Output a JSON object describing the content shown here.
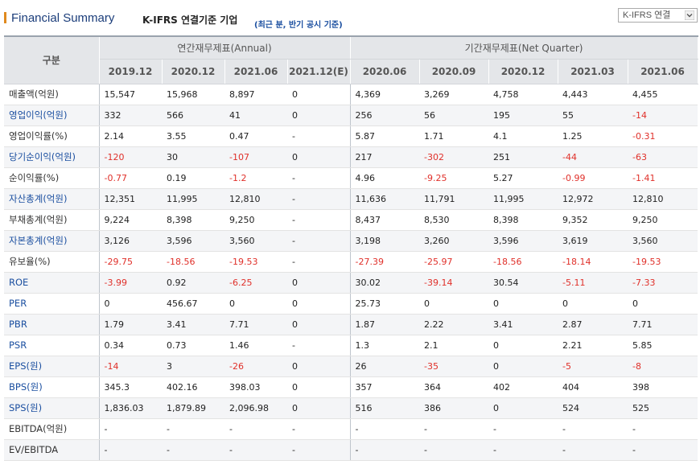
{
  "header": {
    "title_en": "Financial Summary",
    "title_kr": "K-IFRS 연결기준 기업",
    "subtitle": "(최근 분, 반기 공시 기준)",
    "select_value": "K-IFRS 연결"
  },
  "groups": {
    "label": "구분",
    "annual": "연간재무제표(Annual)",
    "quarter": "기간재무제표(Net Quarter)"
  },
  "columns": [
    "2019.12",
    "2020.12",
    "2021.06",
    "2021.12(E)",
    "2020.06",
    "2020.09",
    "2020.12",
    "2021.03",
    "2021.06"
  ],
  "rows": [
    {
      "label": "매출액(억원)",
      "link": false,
      "values": [
        "15,547",
        "15,968",
        "8,897",
        "0",
        "4,369",
        "3,269",
        "4,758",
        "4,443",
        "4,455"
      ]
    },
    {
      "label": "영업이익(억원)",
      "link": true,
      "values": [
        "332",
        "566",
        "41",
        "0",
        "256",
        "56",
        "195",
        "55",
        "-14"
      ]
    },
    {
      "label": "영업이익률(%)",
      "link": false,
      "values": [
        "2.14",
        "3.55",
        "0.47",
        "-",
        "5.87",
        "1.71",
        "4.1",
        "1.25",
        "-0.31"
      ]
    },
    {
      "label": "당기순이익(억원)",
      "link": true,
      "values": [
        "-120",
        "30",
        "-107",
        "0",
        "217",
        "-302",
        "251",
        "-44",
        "-63"
      ]
    },
    {
      "label": "순이익률(%)",
      "link": false,
      "values": [
        "-0.77",
        "0.19",
        "-1.2",
        "-",
        "4.96",
        "-9.25",
        "5.27",
        "-0.99",
        "-1.41"
      ]
    },
    {
      "label": "자산총계(억원)",
      "link": true,
      "values": [
        "12,351",
        "11,995",
        "12,810",
        "-",
        "11,636",
        "11,791",
        "11,995",
        "12,972",
        "12,810"
      ]
    },
    {
      "label": "부채총계(억원)",
      "link": false,
      "values": [
        "9,224",
        "8,398",
        "9,250",
        "-",
        "8,437",
        "8,530",
        "8,398",
        "9,352",
        "9,250"
      ]
    },
    {
      "label": "자본총계(억원)",
      "link": true,
      "values": [
        "3,126",
        "3,596",
        "3,560",
        "-",
        "3,198",
        "3,260",
        "3,596",
        "3,619",
        "3,560"
      ]
    },
    {
      "label": "유보율(%)",
      "link": false,
      "values": [
        "-29.75",
        "-18.56",
        "-19.53",
        "-",
        "-27.39",
        "-25.97",
        "-18.56",
        "-18.14",
        "-19.53"
      ]
    },
    {
      "label": "ROE",
      "link": true,
      "values": [
        "-3.99",
        "0.92",
        "-6.25",
        "0",
        "30.02",
        "-39.14",
        "30.54",
        "-5.11",
        "-7.33"
      ]
    },
    {
      "label": "PER",
      "link": true,
      "values": [
        "0",
        "456.67",
        "0",
        "0",
        "25.73",
        "0",
        "0",
        "0",
        "0"
      ]
    },
    {
      "label": "PBR",
      "link": true,
      "values": [
        "1.79",
        "3.41",
        "7.71",
        "0",
        "1.87",
        "2.22",
        "3.41",
        "2.87",
        "7.71"
      ]
    },
    {
      "label": "PSR",
      "link": true,
      "values": [
        "0.34",
        "0.73",
        "1.46",
        "-",
        "1.3",
        "2.1",
        "0",
        "2.21",
        "5.85"
      ]
    },
    {
      "label": "EPS(원)",
      "link": true,
      "values": [
        "-14",
        "3",
        "-26",
        "0",
        "26",
        "-35",
        "0",
        "-5",
        "-8"
      ]
    },
    {
      "label": "BPS(원)",
      "link": true,
      "values": [
        "345.3",
        "402.16",
        "398.03",
        "0",
        "357",
        "364",
        "402",
        "404",
        "398"
      ]
    },
    {
      "label": "SPS(원)",
      "link": true,
      "values": [
        "1,836.03",
        "1,879.89",
        "2,096.98",
        "0",
        "516",
        "386",
        "0",
        "524",
        "525"
      ]
    },
    {
      "label": "EBITDA(억원)",
      "link": false,
      "values": [
        "-",
        "-",
        "-",
        "-",
        "-",
        "-",
        "-",
        "-",
        "-"
      ]
    },
    {
      "label": "EV/EBITDA",
      "link": false,
      "values": [
        "-",
        "-",
        "-",
        "-",
        "-",
        "-",
        "-",
        "-",
        "-"
      ]
    }
  ],
  "colors": {
    "negative": "#e0302a",
    "link": "#1b4fa0",
    "title_accent": "#e08a1e"
  }
}
